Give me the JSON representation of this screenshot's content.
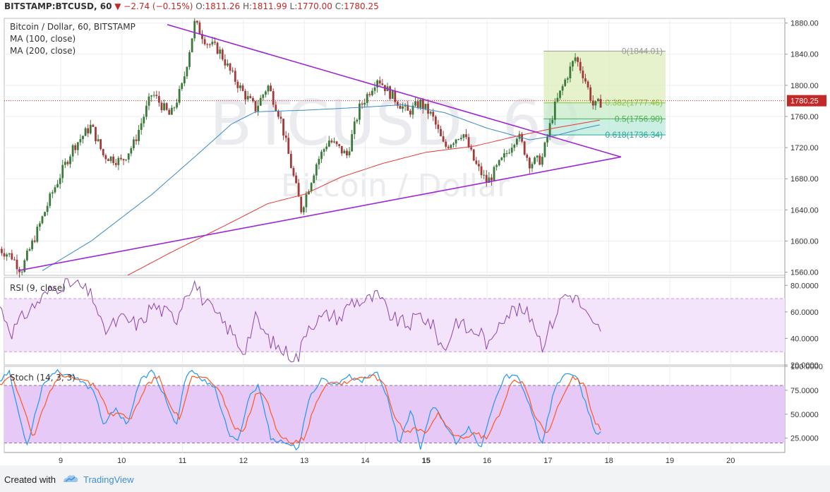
{
  "header": {
    "symbol": "BITSTAMP:BTCUSD, 60",
    "change": "▼ −2.74 (−0.15%)",
    "o_label": "O:",
    "o": "1811.26",
    "h_label": "H:",
    "h": "1811.99",
    "l_label": "L:",
    "l": "1770.00",
    "c_label": "C:",
    "c": "1780.25",
    "last": "1780.25"
  },
  "legend": {
    "title": "Bitcoin / Dollar, 60, BITSTAMP",
    "ma100": "MA (100, close)",
    "ma200": "MA (200, close)",
    "rsi": "RSI (9, close)",
    "stoch": "Stoch (14, 3, 3)"
  },
  "watermark": {
    "big": "BTCUSD, 60",
    "small": "Bitcoin / Dollar"
  },
  "footer": {
    "created_with": "Created with",
    "brand": "TradingView"
  },
  "colors": {
    "up": "#3b7a3b",
    "down": "#a33a3a",
    "ma100": "#3a8ac4",
    "ma200": "#e53935",
    "trend": "#9c27d6",
    "rsi": "#8e44ad",
    "stoch_k": "#2196f3",
    "stoch_d": "#ff5722"
  },
  "chart_data": [
    {
      "type": "candlestick",
      "title": "Bitcoin / Dollar, 60, BITSTAMP",
      "x_ticks": [
        "9",
        "10",
        "11",
        "12",
        "13",
        "14",
        "15",
        "16",
        "17",
        "18",
        "19",
        "20"
      ],
      "y_ticks": [
        "1880.00",
        "1840.00",
        "1800.00",
        "1760.00",
        "1720.00",
        "1680.00",
        "1640.00",
        "1600.00",
        "1560.00"
      ],
      "ylim": [
        1556,
        1886
      ],
      "last_price": 1780.25,
      "ohlc_anchors": [
        {
          "day": 7.99,
          "close": 1590
        },
        {
          "day": 8.2,
          "close": 1580
        },
        {
          "day": 8.35,
          "close": 1562
        },
        {
          "day": 8.6,
          "close": 1610
        },
        {
          "day": 8.85,
          "close": 1660
        },
        {
          "day": 9.2,
          "close": 1720
        },
        {
          "day": 9.5,
          "close": 1748
        },
        {
          "day": 9.7,
          "close": 1710
        },
        {
          "day": 10.0,
          "close": 1702
        },
        {
          "day": 10.2,
          "close": 1725
        },
        {
          "day": 10.5,
          "close": 1790
        },
        {
          "day": 10.8,
          "close": 1760
        },
        {
          "day": 11.0,
          "close": 1800
        },
        {
          "day": 11.2,
          "close": 1880
        },
        {
          "day": 11.4,
          "close": 1855
        },
        {
          "day": 11.6,
          "close": 1845
        },
        {
          "day": 11.8,
          "close": 1815
        },
        {
          "day": 12.0,
          "close": 1790
        },
        {
          "day": 12.2,
          "close": 1770
        },
        {
          "day": 12.4,
          "close": 1800
        },
        {
          "day": 12.6,
          "close": 1760
        },
        {
          "day": 12.8,
          "close": 1690
        },
        {
          "day": 12.95,
          "close": 1640
        },
        {
          "day": 13.2,
          "close": 1700
        },
        {
          "day": 13.4,
          "close": 1730
        },
        {
          "day": 13.7,
          "close": 1710
        },
        {
          "day": 13.9,
          "close": 1770
        },
        {
          "day": 14.2,
          "close": 1810
        },
        {
          "day": 14.4,
          "close": 1790
        },
        {
          "day": 14.7,
          "close": 1765
        },
        {
          "day": 14.9,
          "close": 1778
        },
        {
          "day": 15.1,
          "close": 1760
        },
        {
          "day": 15.3,
          "close": 1720
        },
        {
          "day": 15.6,
          "close": 1740
        },
        {
          "day": 15.8,
          "close": 1700
        },
        {
          "day": 16.0,
          "close": 1675
        },
        {
          "day": 16.3,
          "close": 1710
        },
        {
          "day": 16.5,
          "close": 1738
        },
        {
          "day": 16.7,
          "close": 1700
        },
        {
          "day": 16.9,
          "close": 1705
        },
        {
          "day": 17.1,
          "close": 1770
        },
        {
          "day": 17.3,
          "close": 1810
        },
        {
          "day": 17.45,
          "close": 1836
        },
        {
          "day": 17.6,
          "close": 1810
        },
        {
          "day": 17.75,
          "close": 1772
        },
        {
          "day": 17.9,
          "close": 1780
        }
      ],
      "ma100": [
        {
          "day": 8.7,
          "value": 1562
        },
        {
          "day": 9.5,
          "value": 1600
        },
        {
          "day": 10.5,
          "value": 1660
        },
        {
          "day": 11.3,
          "value": 1715
        },
        {
          "day": 11.8,
          "value": 1750
        },
        {
          "day": 12.2,
          "value": 1766
        },
        {
          "day": 13.0,
          "value": 1768
        },
        {
          "day": 14.0,
          "value": 1772
        },
        {
          "day": 14.6,
          "value": 1775
        },
        {
          "day": 15.3,
          "value": 1765
        },
        {
          "day": 16.0,
          "value": 1745
        },
        {
          "day": 16.7,
          "value": 1730
        },
        {
          "day": 17.1,
          "value": 1735
        },
        {
          "day": 17.6,
          "value": 1745
        },
        {
          "day": 17.9,
          "value": 1750
        }
      ],
      "ma200": [
        {
          "day": 10.1,
          "value": 1556
        },
        {
          "day": 10.8,
          "value": 1585
        },
        {
          "day": 11.7,
          "value": 1620
        },
        {
          "day": 12.4,
          "value": 1648
        },
        {
          "day": 13.0,
          "value": 1660
        },
        {
          "day": 13.6,
          "value": 1682
        },
        {
          "day": 14.3,
          "value": 1700
        },
        {
          "day": 15.0,
          "value": 1714
        },
        {
          "day": 15.8,
          "value": 1722
        },
        {
          "day": 16.5,
          "value": 1735
        },
        {
          "day": 17.1,
          "value": 1745
        },
        {
          "day": 17.9,
          "value": 1756
        }
      ],
      "trendlines": [
        {
          "name": "upper",
          "from": {
            "day": 10.75,
            "price": 1878
          },
          "to": {
            "day": 18.2,
            "price": 1708
          }
        },
        {
          "name": "lower",
          "from": {
            "day": 8.3,
            "price": 1562
          },
          "to": {
            "day": 18.2,
            "price": 1708
          }
        }
      ],
      "fibonacci": {
        "start_day": 16.93,
        "end_day": 18.93,
        "levels": [
          {
            "ratio": "0",
            "price": 1844.01,
            "label": "0(1844.01)"
          },
          {
            "ratio": "0.382",
            "price": 1777.46,
            "label": "0.382(1777.46)"
          },
          {
            "ratio": "0.5",
            "price": 1756.9,
            "label": "0.5(1756.90)"
          },
          {
            "ratio": "0.618",
            "price": 1736.34,
            "label": "0.618(1736.34)"
          }
        ]
      }
    },
    {
      "type": "line",
      "title": "RSI (9, close)",
      "y_ticks": [
        "80.0000",
        "60.0000",
        "40.0000",
        "20.0000"
      ],
      "ylim": [
        20,
        86
      ],
      "bands": [
        30,
        70
      ],
      "anchors": [
        {
          "day": 7.99,
          "value": 65
        },
        {
          "day": 8.2,
          "value": 45
        },
        {
          "day": 8.45,
          "value": 60
        },
        {
          "day": 8.8,
          "value": 75
        },
        {
          "day": 9.05,
          "value": 82
        },
        {
          "day": 9.3,
          "value": 80
        },
        {
          "day": 9.55,
          "value": 70
        },
        {
          "day": 9.7,
          "value": 45
        },
        {
          "day": 10.0,
          "value": 55
        },
        {
          "day": 10.3,
          "value": 50
        },
        {
          "day": 10.5,
          "value": 65
        },
        {
          "day": 10.9,
          "value": 55
        },
        {
          "day": 11.05,
          "value": 75
        },
        {
          "day": 11.2,
          "value": 82
        },
        {
          "day": 11.35,
          "value": 68
        },
        {
          "day": 11.6,
          "value": 55
        },
        {
          "day": 11.8,
          "value": 45
        },
        {
          "day": 12.0,
          "value": 30
        },
        {
          "day": 12.2,
          "value": 55
        },
        {
          "day": 12.4,
          "value": 40
        },
        {
          "day": 12.6,
          "value": 32
        },
        {
          "day": 12.9,
          "value": 25
        },
        {
          "day": 13.05,
          "value": 50
        },
        {
          "day": 13.4,
          "value": 58
        },
        {
          "day": 13.6,
          "value": 55
        },
        {
          "day": 13.75,
          "value": 68
        },
        {
          "day": 14.0,
          "value": 68
        },
        {
          "day": 14.2,
          "value": 72
        },
        {
          "day": 14.45,
          "value": 55
        },
        {
          "day": 14.7,
          "value": 50
        },
        {
          "day": 14.9,
          "value": 58
        },
        {
          "day": 15.1,
          "value": 50
        },
        {
          "day": 15.3,
          "value": 30
        },
        {
          "day": 15.5,
          "value": 55
        },
        {
          "day": 15.7,
          "value": 45
        },
        {
          "day": 15.9,
          "value": 45
        },
        {
          "day": 16.05,
          "value": 32
        },
        {
          "day": 16.2,
          "value": 55
        },
        {
          "day": 16.45,
          "value": 62
        },
        {
          "day": 16.6,
          "value": 60
        },
        {
          "day": 16.75,
          "value": 55
        },
        {
          "day": 16.9,
          "value": 35
        },
        {
          "day": 17.1,
          "value": 55
        },
        {
          "day": 17.25,
          "value": 73
        },
        {
          "day": 17.45,
          "value": 72
        },
        {
          "day": 17.6,
          "value": 60
        },
        {
          "day": 17.75,
          "value": 48
        },
        {
          "day": 17.9,
          "value": 48
        }
      ]
    },
    {
      "type": "line",
      "title": "Stoch (14, 3, 3)",
      "y_ticks": [
        "100.0000",
        "75.0000",
        "50.0000",
        "25.0000"
      ],
      "ylim": [
        10,
        100
      ],
      "bands": [
        20,
        80
      ],
      "series": [
        {
          "name": "%K",
          "anchors": [
            {
              "day": 7.99,
              "value": 85
            },
            {
              "day": 8.15,
              "value": 95
            },
            {
              "day": 8.35,
              "value": 40
            },
            {
              "day": 8.45,
              "value": 18
            },
            {
              "day": 8.7,
              "value": 80
            },
            {
              "day": 8.9,
              "value": 95
            },
            {
              "day": 9.1,
              "value": 92
            },
            {
              "day": 9.3,
              "value": 85
            },
            {
              "day": 9.55,
              "value": 75
            },
            {
              "day": 9.7,
              "value": 40
            },
            {
              "day": 9.9,
              "value": 55
            },
            {
              "day": 10.1,
              "value": 40
            },
            {
              "day": 10.3,
              "value": 85
            },
            {
              "day": 10.5,
              "value": 95
            },
            {
              "day": 10.7,
              "value": 70
            },
            {
              "day": 10.9,
              "value": 35
            },
            {
              "day": 11.05,
              "value": 90
            },
            {
              "day": 11.2,
              "value": 95
            },
            {
              "day": 11.35,
              "value": 85
            },
            {
              "day": 11.55,
              "value": 75
            },
            {
              "day": 11.75,
              "value": 30
            },
            {
              "day": 11.9,
              "value": 20
            },
            {
              "day": 12.1,
              "value": 70
            },
            {
              "day": 12.25,
              "value": 80
            },
            {
              "day": 12.45,
              "value": 25
            },
            {
              "day": 12.7,
              "value": 20
            },
            {
              "day": 12.9,
              "value": 14
            },
            {
              "day": 13.1,
              "value": 70
            },
            {
              "day": 13.3,
              "value": 88
            },
            {
              "day": 13.5,
              "value": 80
            },
            {
              "day": 13.7,
              "value": 90
            },
            {
              "day": 13.95,
              "value": 85
            },
            {
              "day": 14.2,
              "value": 95
            },
            {
              "day": 14.4,
              "value": 60
            },
            {
              "day": 14.55,
              "value": 18
            },
            {
              "day": 14.75,
              "value": 55
            },
            {
              "day": 14.9,
              "value": 14
            },
            {
              "day": 15.1,
              "value": 60
            },
            {
              "day": 15.3,
              "value": 40
            },
            {
              "day": 15.5,
              "value": 20
            },
            {
              "day": 15.7,
              "value": 35
            },
            {
              "day": 15.9,
              "value": 14
            },
            {
              "day": 16.1,
              "value": 60
            },
            {
              "day": 16.3,
              "value": 90
            },
            {
              "day": 16.5,
              "value": 90
            },
            {
              "day": 16.7,
              "value": 60
            },
            {
              "day": 16.9,
              "value": 18
            },
            {
              "day": 17.1,
              "value": 75
            },
            {
              "day": 17.3,
              "value": 95
            },
            {
              "day": 17.5,
              "value": 85
            },
            {
              "day": 17.65,
              "value": 55
            },
            {
              "day": 17.8,
              "value": 28
            },
            {
              "day": 17.9,
              "value": 32
            }
          ]
        },
        {
          "name": "%D",
          "anchors": [
            {
              "day": 7.99,
              "value": 80
            },
            {
              "day": 8.2,
              "value": 92
            },
            {
              "day": 8.4,
              "value": 55
            },
            {
              "day": 8.55,
              "value": 25
            },
            {
              "day": 8.8,
              "value": 70
            },
            {
              "day": 9.0,
              "value": 92
            },
            {
              "day": 9.3,
              "value": 88
            },
            {
              "day": 9.6,
              "value": 78
            },
            {
              "day": 9.8,
              "value": 50
            },
            {
              "day": 10.0,
              "value": 50
            },
            {
              "day": 10.15,
              "value": 45
            },
            {
              "day": 10.4,
              "value": 80
            },
            {
              "day": 10.6,
              "value": 90
            },
            {
              "day": 10.8,
              "value": 60
            },
            {
              "day": 10.95,
              "value": 45
            },
            {
              "day": 11.15,
              "value": 88
            },
            {
              "day": 11.4,
              "value": 88
            },
            {
              "day": 11.65,
              "value": 70
            },
            {
              "day": 11.85,
              "value": 35
            },
            {
              "day": 12.0,
              "value": 30
            },
            {
              "day": 12.2,
              "value": 70
            },
            {
              "day": 12.35,
              "value": 70
            },
            {
              "day": 12.55,
              "value": 32
            },
            {
              "day": 12.8,
              "value": 20
            },
            {
              "day": 13.0,
              "value": 25
            },
            {
              "day": 13.2,
              "value": 65
            },
            {
              "day": 13.4,
              "value": 85
            },
            {
              "day": 13.6,
              "value": 82
            },
            {
              "day": 13.85,
              "value": 88
            },
            {
              "day": 14.1,
              "value": 90
            },
            {
              "day": 14.3,
              "value": 85
            },
            {
              "day": 14.5,
              "value": 45
            },
            {
              "day": 14.65,
              "value": 30
            },
            {
              "day": 14.85,
              "value": 35
            },
            {
              "day": 15.0,
              "value": 30
            },
            {
              "day": 15.2,
              "value": 50
            },
            {
              "day": 15.4,
              "value": 32
            },
            {
              "day": 15.6,
              "value": 25
            },
            {
              "day": 15.8,
              "value": 30
            },
            {
              "day": 16.0,
              "value": 25
            },
            {
              "day": 16.2,
              "value": 50
            },
            {
              "day": 16.4,
              "value": 85
            },
            {
              "day": 16.6,
              "value": 85
            },
            {
              "day": 16.8,
              "value": 45
            },
            {
              "day": 17.0,
              "value": 28
            },
            {
              "day": 17.2,
              "value": 65
            },
            {
              "day": 17.4,
              "value": 90
            },
            {
              "day": 17.6,
              "value": 80
            },
            {
              "day": 17.75,
              "value": 45
            },
            {
              "day": 17.9,
              "value": 30
            }
          ]
        }
      ]
    }
  ]
}
